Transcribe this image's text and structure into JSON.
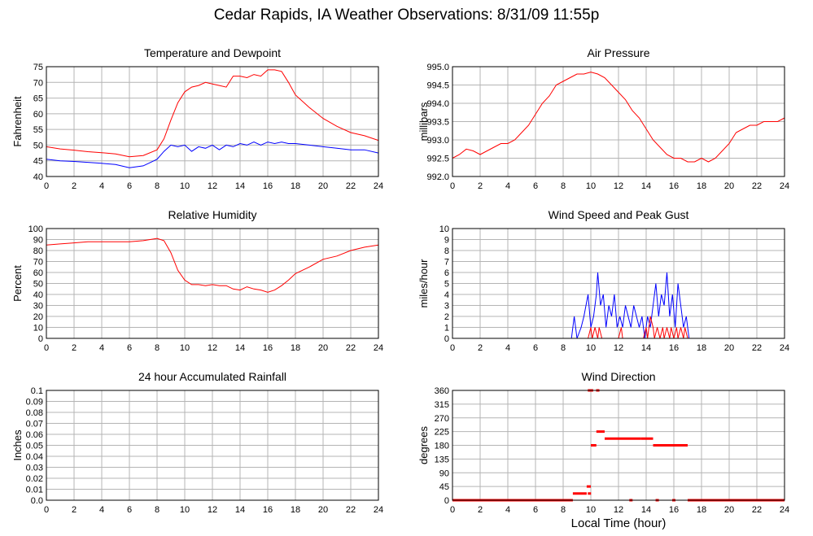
{
  "title": "Cedar Rapids, IA Weather Observations: 8/31/09 11:55p",
  "x_axis_title": "Local Time (hour)",
  "colors": {
    "red": "#ff0000",
    "blue": "#0000ff",
    "grid": "#b4b4b4",
    "frame": "#000000"
  },
  "chart_data": [
    {
      "id": "temp",
      "type": "line",
      "title": "Temperature and Dewpoint",
      "ylabel": "Fahrenheit",
      "xlim": [
        0,
        24
      ],
      "ylim": [
        40,
        75
      ],
      "x_ticks": [
        0,
        2,
        4,
        6,
        8,
        10,
        12,
        14,
        16,
        18,
        20,
        22,
        24
      ],
      "y_ticks": [
        40,
        45,
        50,
        55,
        60,
        65,
        70,
        75
      ],
      "y_tick_labels": [
        "40",
        "45",
        "50",
        "55",
        "60",
        "65",
        "70",
        "75"
      ],
      "series": [
        {
          "color": "#ff0000",
          "x": [
            0,
            1,
            2,
            3,
            4,
            5,
            6,
            7,
            8,
            8.5,
            9,
            9.5,
            10,
            10.5,
            11,
            11.5,
            12,
            12.5,
            13,
            13.5,
            14,
            14.5,
            15,
            15.5,
            16,
            16.5,
            17,
            17.5,
            18,
            19,
            20,
            21,
            22,
            23,
            24
          ],
          "y": [
            49.5,
            48.8,
            48.4,
            47.9,
            47.6,
            47.2,
            46.3,
            46.7,
            48.5,
            52,
            58,
            63.5,
            67,
            68.5,
            69,
            70,
            69.5,
            69,
            68.5,
            72,
            72,
            71.5,
            72.5,
            72,
            74,
            74,
            73.5,
            70,
            66,
            62,
            58.5,
            56,
            54,
            53,
            51.5
          ]
        },
        {
          "color": "#0000ff",
          "x": [
            0,
            1,
            2,
            3,
            4,
            5,
            6,
            7,
            8,
            8.5,
            9,
            9.5,
            10,
            10.5,
            11,
            11.5,
            12,
            12.5,
            13,
            13.5,
            14,
            14.5,
            15,
            15.5,
            16,
            16.5,
            17,
            17.5,
            18,
            19,
            20,
            21,
            22,
            23,
            24
          ],
          "y": [
            45.5,
            45,
            44.8,
            44.5,
            44.2,
            43.8,
            42.8,
            43.4,
            45.5,
            48,
            50,
            49.5,
            50,
            48,
            49.5,
            49,
            50,
            48.5,
            50,
            49.5,
            50.5,
            50,
            51,
            50,
            51,
            50.5,
            51,
            50.5,
            50.5,
            50,
            49.5,
            49,
            48.5,
            48.5,
            47.5
          ]
        }
      ]
    },
    {
      "id": "pressure",
      "type": "line",
      "title": "Air Pressure",
      "ylabel": "millibars",
      "xlim": [
        0,
        24
      ],
      "ylim": [
        992.0,
        995.0
      ],
      "x_ticks": [
        0,
        2,
        4,
        6,
        8,
        10,
        12,
        14,
        16,
        18,
        20,
        22,
        24
      ],
      "y_ticks": [
        992.0,
        992.5,
        993.0,
        993.5,
        994.0,
        994.5,
        995.0
      ],
      "y_tick_labels": [
        "992.0",
        "992.5",
        "993.0",
        "993.5",
        "994.0",
        "994.5",
        "995.0"
      ],
      "series": [
        {
          "color": "#ff0000",
          "x": [
            0,
            0.5,
            1,
            1.5,
            2,
            2.5,
            3,
            3.5,
            4,
            4.5,
            5,
            5.5,
            6,
            6.5,
            7,
            7.5,
            8,
            8.5,
            9,
            9.5,
            10,
            10.5,
            11,
            11.5,
            12,
            12.5,
            13,
            13.5,
            14,
            14.5,
            15,
            15.5,
            16,
            16.5,
            17,
            17.5,
            18,
            18.5,
            19,
            19.5,
            20,
            20.5,
            21,
            21.5,
            22,
            22.5,
            23,
            23.5,
            24
          ],
          "y": [
            992.5,
            992.6,
            992.75,
            992.7,
            992.6,
            992.7,
            992.8,
            992.9,
            992.9,
            993.0,
            993.2,
            993.4,
            993.7,
            994.0,
            994.2,
            994.5,
            994.6,
            994.7,
            994.8,
            994.8,
            994.85,
            994.8,
            994.7,
            994.5,
            994.3,
            994.1,
            993.8,
            993.6,
            993.3,
            993.0,
            992.8,
            992.6,
            992.5,
            992.5,
            992.4,
            992.4,
            992.5,
            992.4,
            992.5,
            992.7,
            992.9,
            993.2,
            993.3,
            993.4,
            993.4,
            993.5,
            993.5,
            993.5,
            993.6
          ]
        }
      ]
    },
    {
      "id": "rh",
      "type": "line",
      "title": "Relative Humidity",
      "ylabel": "Percent",
      "xlim": [
        0,
        24
      ],
      "ylim": [
        0,
        100
      ],
      "x_ticks": [
        0,
        2,
        4,
        6,
        8,
        10,
        12,
        14,
        16,
        18,
        20,
        22,
        24
      ],
      "y_ticks": [
        0,
        10,
        20,
        30,
        40,
        50,
        60,
        70,
        80,
        90,
        100
      ],
      "y_tick_labels": [
        "0",
        "10",
        "20",
        "30",
        "40",
        "50",
        "60",
        "70",
        "80",
        "90",
        "100"
      ],
      "series": [
        {
          "color": "#ff0000",
          "x": [
            0,
            1,
            2,
            3,
            4,
            5,
            6,
            7,
            7.5,
            8,
            8.5,
            9,
            9.5,
            10,
            10.5,
            11,
            11.5,
            12,
            12.5,
            13,
            13.5,
            14,
            14.5,
            15,
            15.5,
            16,
            16.5,
            17,
            17.5,
            18,
            19,
            20,
            21,
            22,
            23,
            24
          ],
          "y": [
            85,
            86,
            87,
            88,
            88,
            88,
            88,
            89,
            90,
            91,
            89,
            78,
            62,
            53,
            49,
            49,
            48,
            49,
            48,
            48,
            45,
            44,
            47,
            45,
            44,
            42,
            44,
            48,
            53,
            59,
            65,
            72,
            75,
            80,
            83,
            85
          ]
        }
      ]
    },
    {
      "id": "wind",
      "type": "line",
      "title": "Wind Speed and Peak Gust",
      "ylabel": "miles/hour",
      "xlim": [
        0,
        24
      ],
      "ylim": [
        0,
        10
      ],
      "x_ticks": [
        0,
        2,
        4,
        6,
        8,
        10,
        12,
        14,
        16,
        18,
        20,
        22,
        24
      ],
      "y_ticks": [
        0,
        1,
        2,
        3,
        4,
        5,
        6,
        7,
        8,
        9,
        10
      ],
      "y_tick_labels": [
        "0",
        "1",
        "2",
        "3",
        "4",
        "5",
        "6",
        "7",
        "8",
        "9",
        "10"
      ],
      "series": [
        {
          "color": "#0000ff",
          "x": [
            0,
            8.6,
            8.8,
            9.0,
            9.3,
            9.5,
            9.8,
            10.0,
            10.2,
            10.4,
            10.5,
            10.7,
            10.9,
            11.1,
            11.3,
            11.5,
            11.7,
            11.9,
            12.1,
            12.3,
            12.5,
            12.7,
            12.9,
            13.1,
            13.3,
            13.5,
            13.7,
            13.9,
            14.1,
            14.3,
            14.5,
            14.7,
            14.9,
            15.1,
            15.3,
            15.5,
            15.7,
            15.9,
            16.1,
            16.3,
            16.5,
            16.7,
            16.9,
            17.1,
            24
          ],
          "y": [
            0,
            0,
            2,
            0,
            1,
            2,
            4,
            1,
            2,
            4,
            6,
            3,
            4,
            1,
            3,
            2,
            4,
            1,
            2,
            1,
            3,
            2,
            1,
            3,
            2,
            1,
            2,
            0,
            2,
            1,
            3,
            5,
            2,
            4,
            3,
            6,
            2,
            4,
            1,
            5,
            3,
            1,
            2,
            0,
            0
          ]
        },
        {
          "color": "#ff0000",
          "x": [
            0,
            9.8,
            10.0,
            10.1,
            10.3,
            10.5,
            10.6,
            10.8,
            12.0,
            12.2,
            12.3,
            13.8,
            14.0,
            14.1,
            14.3,
            14.5,
            14.6,
            14.8,
            15.0,
            15.2,
            15.3,
            15.5,
            15.7,
            15.8,
            16.0,
            16.2,
            16.3,
            16.5,
            16.7,
            16.8,
            17.0,
            24
          ],
          "y": [
            0,
            0,
            1,
            0,
            1,
            0,
            1,
            0,
            0,
            1,
            0,
            0,
            1,
            0,
            2,
            1,
            0,
            1,
            0,
            1,
            0,
            1,
            0,
            1,
            0,
            1,
            0,
            1,
            0,
            1,
            0,
            0
          ]
        }
      ]
    },
    {
      "id": "rain",
      "type": "line",
      "title": "24 hour Accumulated Rainfall",
      "ylabel": "Inches",
      "xlim": [
        0,
        24
      ],
      "ylim": [
        0,
        0.1
      ],
      "x_ticks": [
        0,
        2,
        4,
        6,
        8,
        10,
        12,
        14,
        16,
        18,
        20,
        22,
        24
      ],
      "y_ticks": [
        0,
        0.01,
        0.02,
        0.03,
        0.04,
        0.05,
        0.06,
        0.07,
        0.08,
        0.09,
        0.1
      ],
      "y_tick_labels": [
        "0.0",
        "0.01",
        "0.02",
        "0.03",
        "0.04",
        "0.05",
        "0.06",
        "0.07",
        "0.08",
        "0.09",
        "0.1"
      ],
      "series": [
        {
          "color": "#ff0000",
          "x": [
            0,
            24
          ],
          "y": [
            0,
            0
          ]
        }
      ]
    },
    {
      "id": "dir",
      "type": "scatter",
      "title": "Wind Direction",
      "ylabel": "degrees",
      "xlim": [
        0,
        24
      ],
      "ylim": [
        0,
        360
      ],
      "x_ticks": [
        0,
        2,
        4,
        6,
        8,
        10,
        12,
        14,
        16,
        18,
        20,
        22,
        24
      ],
      "y_ticks": [
        0,
        45,
        90,
        135,
        180,
        225,
        270,
        315,
        360
      ],
      "y_tick_labels": [
        "0",
        "45",
        "90",
        "135",
        "180",
        "225",
        "270",
        "315",
        "360"
      ],
      "segments": [
        {
          "x": [
            0,
            8.7
          ],
          "y": 0
        },
        {
          "x": [
            8.7,
            9.7
          ],
          "y": 22
        },
        {
          "x": [
            9.7,
            10.0
          ],
          "y": 45
        },
        {
          "x": [
            10.0,
            10.4
          ],
          "y": 180
        },
        {
          "x": [
            10.4,
            11.0
          ],
          "y": 225
        },
        {
          "x": [
            11.0,
            13.6
          ],
          "y": 202
        },
        {
          "x": [
            13.6,
            14.5
          ],
          "y": 202
        },
        {
          "x": [
            14.5,
            17.0
          ],
          "y": 180
        },
        {
          "x": [
            17.0,
            24
          ],
          "y": 0
        }
      ],
      "points": [
        {
          "x": 9.9,
          "y": 360
        },
        {
          "x": 10.05,
          "y": 360
        },
        {
          "x": 10.5,
          "y": 360
        },
        {
          "x": 9.9,
          "y": 22
        },
        {
          "x": 12.9,
          "y": 0
        },
        {
          "x": 14.8,
          "y": 0
        },
        {
          "x": 16.0,
          "y": 0
        }
      ]
    }
  ]
}
